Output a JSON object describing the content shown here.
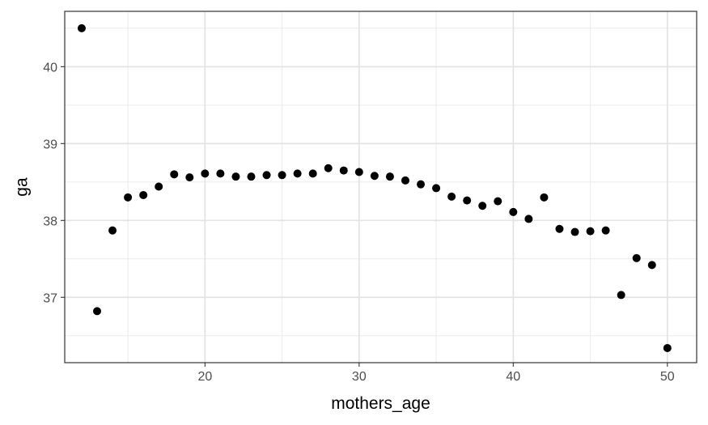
{
  "chart_data": {
    "type": "scatter",
    "xlabel": "mothers_age",
    "ylabel": "ga",
    "xlim": [
      10.9,
      51.9
    ],
    "ylim": [
      36.15,
      40.72
    ],
    "x_major_ticks": [
      20,
      30,
      40,
      50
    ],
    "x_tick_labels": [
      "20",
      "30",
      "40",
      "50"
    ],
    "x_minor_ticks": [
      15,
      25,
      35,
      45
    ],
    "y_major_ticks": [
      37,
      38,
      39,
      40
    ],
    "y_tick_labels": [
      "37",
      "38",
      "39",
      "40"
    ],
    "y_minor_ticks": [
      36.5,
      37.5,
      38.5,
      39.5,
      40.5
    ],
    "grid": true,
    "theme": "bw",
    "point_color": "#000000",
    "x": [
      12,
      13,
      14,
      15,
      16,
      17,
      18,
      19,
      20,
      21,
      22,
      23,
      24,
      25,
      26,
      27,
      28,
      29,
      30,
      31,
      32,
      33,
      34,
      35,
      36,
      37,
      38,
      39,
      40,
      41,
      42,
      43,
      44,
      45,
      46,
      47,
      48,
      49,
      50
    ],
    "y": [
      40.5,
      36.82,
      37.87,
      38.3,
      38.33,
      38.44,
      38.6,
      38.56,
      38.61,
      38.61,
      38.57,
      38.57,
      38.59,
      38.59,
      38.61,
      38.61,
      38.68,
      38.65,
      38.63,
      38.58,
      38.57,
      38.52,
      38.47,
      38.42,
      38.31,
      38.26,
      38.19,
      38.25,
      38.11,
      38.02,
      38.3,
      37.89,
      37.85,
      37.86,
      37.87,
      37.03,
      37.51,
      37.42,
      36.34
    ]
  }
}
